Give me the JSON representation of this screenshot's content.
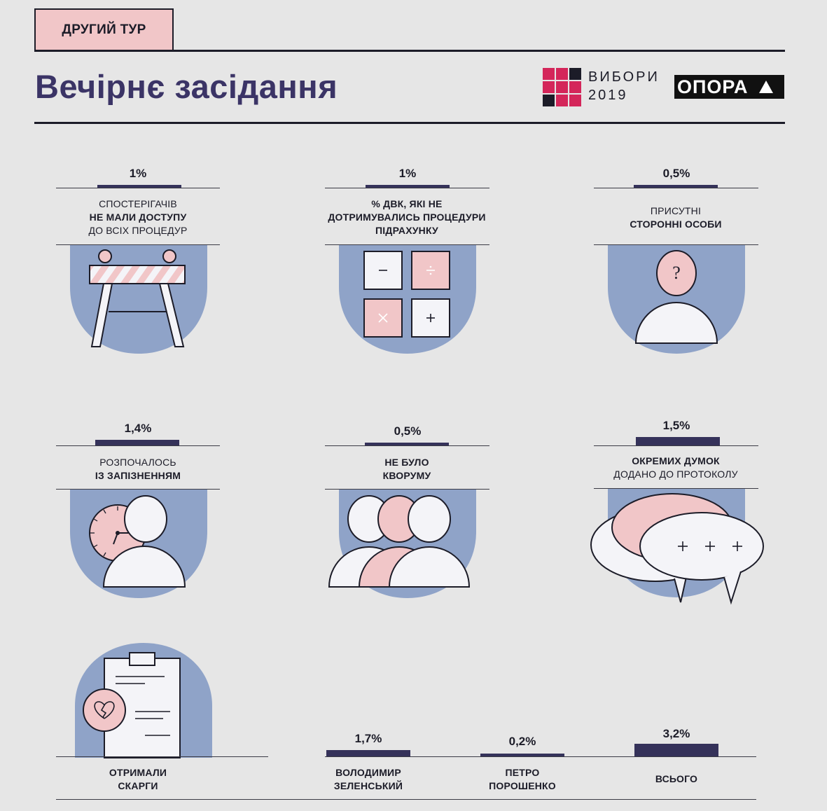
{
  "header": {
    "tag": "ДРУГИЙ ТУР",
    "title": "Вечірнє засідання",
    "logo_line1": "ВИБОРИ",
    "logo_line2": "2019",
    "opora": "ОПОРА"
  },
  "colors": {
    "background": "#e6e6e6",
    "accent_pink": "#f1c6c8",
    "blob_blue": "#8fa3c8",
    "bar_navy": "#35325a",
    "title_purple": "#3b3466",
    "logo_magenta": "#d4265a"
  },
  "chart_data": [
    {
      "type": "bar",
      "title": "",
      "categories": [
        "спостерігачів не мали доступу до всіх процедур",
        "% ДВК, які не дотримувались процедури підрахунку",
        "присутні сторонні особи",
        "розпочалось із запізненням",
        "не було кворуму",
        "окремих думок додано до протоколу"
      ],
      "values": [
        1,
        1,
        0.5,
        1.4,
        0.5,
        1.5
      ],
      "labels": [
        "1%",
        "1%",
        "0,5%",
        "1,4%",
        "0,5%",
        "1,5%"
      ],
      "unit": "%"
    },
    {
      "type": "bar",
      "title": "Отримали скарги",
      "categories": [
        "Володимир Зеленський",
        "Петро Порошенко",
        "Всього"
      ],
      "values": [
        1.7,
        0.2,
        3.2
      ],
      "labels": [
        "1,7%",
        "0,2%",
        "3,2%"
      ],
      "unit": "%"
    }
  ],
  "cards": [
    {
      "pct": "1%",
      "l1": "СПОСТЕРІГАЧІВ",
      "l2": "НЕ МАЛИ ДОСТУПУ",
      "l3": "ДО ВСІХ ПРОЦЕДУР",
      "icon": "barrier-icon"
    },
    {
      "pct": "1%",
      "l1": "% ДВК, ЯКІ НЕ",
      "l2": "ДОТРИМУВАЛИСЬ ПРОЦЕДУРИ",
      "l3": "ПІДРАХУНКУ",
      "icon": "calculator-icon"
    },
    {
      "pct": "0,5%",
      "l1": "ПРИСУТНІ",
      "l2": "СТОРОННІ ОСОБИ",
      "icon": "unknown-person-icon"
    },
    {
      "pct": "1,4%",
      "l1": "РОЗПОЧАЛОСЬ",
      "l2": "ІЗ ЗАПІЗНЕННЯМ",
      "icon": "clock-person-icon"
    },
    {
      "pct": "0,5%",
      "l1": "НЕ БУЛО",
      "l2": "КВОРУМУ",
      "icon": "group-icon"
    },
    {
      "pct": "1,5%",
      "l1": "ОКРЕМИХ ДУМОК",
      "l2": "ДОДАНО ДО ПРОТОКОЛУ",
      "icon": "speech-bubbles-icon"
    }
  ],
  "complaints": {
    "label_l1": "ОТРИМАЛИ",
    "label_l2": "СКАРГИ",
    "icon": "complaint-document-icon",
    "items": [
      {
        "pct": "1,7%",
        "l1": "ВОЛОДИМИР",
        "l2": "ЗЕЛЕНСЬКИЙ"
      },
      {
        "pct": "0,2%",
        "l1": "ПЕТРО",
        "l2": "ПОРОШЕНКО"
      },
      {
        "pct": "3,2%",
        "l1": "ВСЬОГО"
      }
    ]
  }
}
